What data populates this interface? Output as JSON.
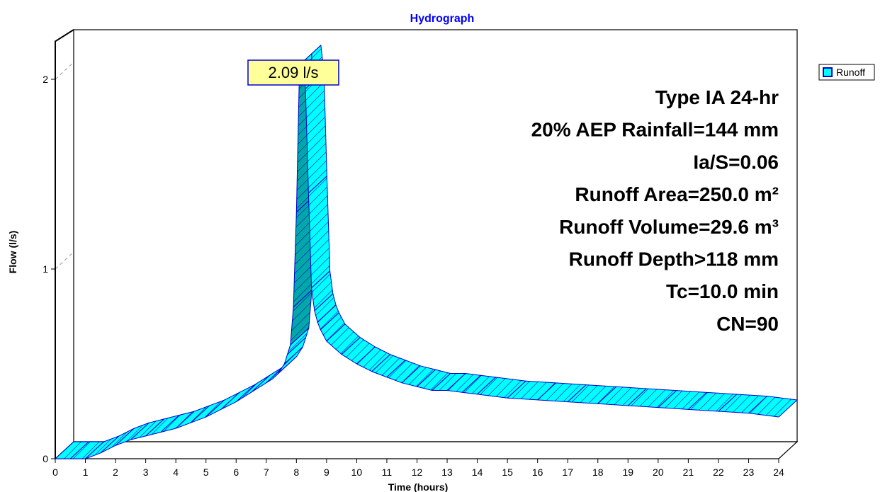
{
  "chart_data": {
    "type": "area",
    "title": "Hydrograph",
    "xlabel": "Time (hours)",
    "ylabel": "Flow (l/s)",
    "xlim": [
      0,
      24
    ],
    "ylim": [
      0,
      2.2
    ],
    "x_ticks": [
      0,
      1,
      2,
      3,
      4,
      5,
      6,
      7,
      8,
      9,
      10,
      11,
      12,
      13,
      14,
      15,
      16,
      17,
      18,
      19,
      20,
      21,
      22,
      23,
      24
    ],
    "y_ticks": [
      0,
      1,
      2
    ],
    "grid": true,
    "legend_position": "top-right",
    "series": [
      {
        "name": "Runoff",
        "color": "#00ffff",
        "edge_color": "#0000cc",
        "x": [
          0.0,
          0.5,
          1.0,
          1.5,
          2.0,
          2.5,
          3.0,
          3.5,
          4.0,
          4.5,
          5.0,
          5.5,
          6.0,
          6.5,
          7.0,
          7.2,
          7.4,
          7.6,
          7.7,
          7.8,
          7.9,
          8.0,
          8.1,
          8.2,
          8.3,
          8.4,
          8.5,
          8.6,
          8.7,
          8.8,
          9.0,
          9.5,
          10.0,
          10.5,
          11.0,
          11.5,
          12.0,
          12.5,
          13.0,
          13.5,
          14.0,
          15.0,
          16.0,
          17.0,
          18.0,
          19.0,
          20.0,
          21.0,
          22.0,
          23.0,
          24.0
        ],
        "values": [
          0.0,
          0.0,
          0.0,
          0.03,
          0.07,
          0.1,
          0.12,
          0.14,
          0.16,
          0.19,
          0.22,
          0.26,
          0.3,
          0.35,
          0.4,
          0.42,
          0.45,
          0.5,
          0.55,
          0.6,
          0.8,
          1.3,
          2.05,
          2.09,
          1.95,
          1.4,
          0.9,
          0.78,
          0.72,
          0.68,
          0.62,
          0.55,
          0.5,
          0.46,
          0.43,
          0.4,
          0.38,
          0.36,
          0.36,
          0.35,
          0.34,
          0.32,
          0.31,
          0.3,
          0.29,
          0.28,
          0.27,
          0.26,
          0.25,
          0.24,
          0.22
        ]
      }
    ],
    "peak_label": "2.09 l/s",
    "peak_x": 8.2,
    "peak_y": 2.09,
    "annotations": [
      "Type IA 24-hr",
      "20% AEP Rainfall=144 mm",
      "Ia/S=0.06",
      "Runoff Area=250.0 m²",
      "Runoff Volume=29.6 m³",
      "Runoff Depth>118 mm",
      "Tc=10.0 min",
      "CN=90"
    ]
  }
}
